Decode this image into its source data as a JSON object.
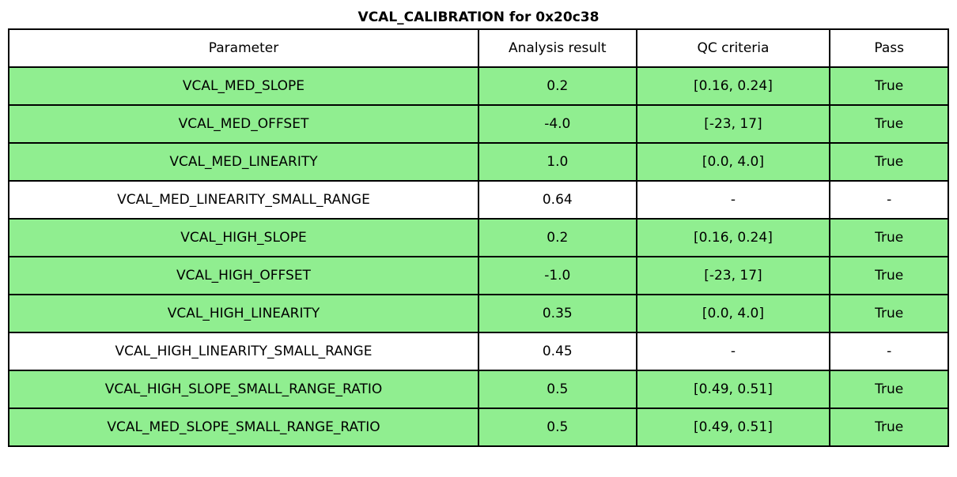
{
  "chart_data": {
    "type": "table",
    "title": "VCAL_CALIBRATION for 0x20c38",
    "columns": [
      "Parameter",
      "Analysis result",
      "QC criteria",
      "Pass"
    ],
    "rows": [
      [
        "VCAL_MED_SLOPE",
        "0.2",
        "[0.16, 0.24]",
        "True"
      ],
      [
        "VCAL_MED_OFFSET",
        "-4.0",
        "[-23, 17]",
        "True"
      ],
      [
        "VCAL_MED_LINEARITY",
        "1.0",
        "[0.0, 4.0]",
        "True"
      ],
      [
        "VCAL_MED_LINEARITY_SMALL_RANGE",
        "0.64",
        "-",
        "-"
      ],
      [
        "VCAL_HIGH_SLOPE",
        "0.2",
        "[0.16, 0.24]",
        "True"
      ],
      [
        "VCAL_HIGH_OFFSET",
        "-1.0",
        "[-23, 17]",
        "True"
      ],
      [
        "VCAL_HIGH_LINEARITY",
        "0.35",
        "[0.0, 4.0]",
        "True"
      ],
      [
        "VCAL_HIGH_LINEARITY_SMALL_RANGE",
        "0.45",
        "-",
        "-"
      ],
      [
        "VCAL_HIGH_SLOPE_SMALL_RANGE_RATIO",
        "0.5",
        "[0.49, 0.51]",
        "True"
      ],
      [
        "VCAL_MED_SLOPE_SMALL_RANGE_RATIO",
        "0.5",
        "[0.49, 0.51]",
        "True"
      ]
    ],
    "row_colors": [
      "#90EE90",
      "#90EE90",
      "#90EE90",
      "#FFFFFF",
      "#90EE90",
      "#90EE90",
      "#90EE90",
      "#FFFFFF",
      "#90EE90",
      "#90EE90"
    ],
    "layout": {
      "legend": "none",
      "grid": "full-borders",
      "header_background": "#FFFFFF",
      "border_color": "#000000"
    }
  }
}
